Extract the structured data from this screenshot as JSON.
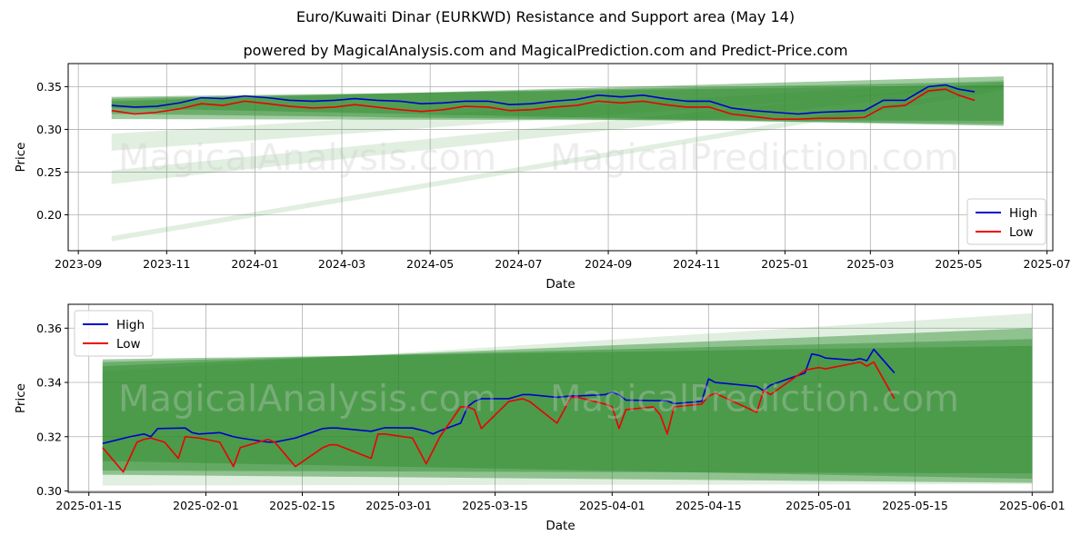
{
  "header": {
    "title": "Euro/Kuwaiti Dinar (EURKWD) Resistance and Support area (May 14)",
    "subtitle": "powered by MagicalAnalysis.com and MagicalPrediction.com and Predict-Price.com"
  },
  "watermarks": [
    "MagicalAnalysis.com",
    "MagicalPrediction.com"
  ],
  "colors": {
    "high": "#0000cc",
    "low": "#ee0000",
    "band": "#2e8b2e",
    "grid": "#b0b0b0"
  },
  "chart_data": [
    {
      "type": "line",
      "xlabel": "Date",
      "ylabel": "Price",
      "x_ticks": [
        "2023-09",
        "2023-11",
        "2024-01",
        "2024-03",
        "2024-05",
        "2024-07",
        "2024-09",
        "2024-11",
        "2025-01",
        "2025-03",
        "2025-05",
        "2025-07"
      ],
      "y_ticks": [
        "0.20",
        "0.25",
        "0.30",
        "0.35"
      ],
      "xlim": [
        "2023-08-25",
        "2025-07-05"
      ],
      "ylim": [
        0.158,
        0.377
      ],
      "legend": {
        "position": "bottom-right",
        "entries": [
          "High",
          "Low"
        ]
      },
      "bands": [
        {
          "x": [
            "2023-09-24",
            "2025-06-01"
          ],
          "top": [
            0.338,
            0.352
          ],
          "bottom": [
            0.318,
            0.306
          ]
        },
        {
          "x": [
            "2023-09-24",
            "2025-06-01"
          ],
          "top": [
            0.336,
            0.356
          ],
          "bottom": [
            0.312,
            0.31
          ]
        },
        {
          "x": [
            "2023-09-24",
            "2025-06-01"
          ],
          "top": [
            0.333,
            0.362
          ],
          "bottom": [
            0.325,
            0.304
          ]
        },
        {
          "x": [
            "2023-09-24",
            "2025-06-01"
          ],
          "top": [
            0.295,
            0.358
          ],
          "bottom": [
            0.275,
            0.35
          ]
        },
        {
          "x": [
            "2023-09-24",
            "2025-06-01"
          ],
          "top": [
            0.252,
            0.356
          ],
          "bottom": [
            0.236,
            0.349
          ]
        },
        {
          "x": [
            "2023-09-24",
            "2025-06-01"
          ],
          "top": [
            0.175,
            0.352
          ],
          "bottom": [
            0.169,
            0.346
          ]
        }
      ],
      "series": [
        {
          "name": "High",
          "x": [
            "2023-09-24",
            "2023-10-10",
            "2023-10-25",
            "2023-11-10",
            "2023-11-25",
            "2023-12-10",
            "2023-12-25",
            "2024-01-10",
            "2024-01-25",
            "2024-02-10",
            "2024-02-25",
            "2024-03-10",
            "2024-03-25",
            "2024-04-10",
            "2024-04-25",
            "2024-05-10",
            "2024-05-25",
            "2024-06-10",
            "2024-06-25",
            "2024-07-10",
            "2024-07-25",
            "2024-08-10",
            "2024-08-25",
            "2024-09-10",
            "2024-09-25",
            "2024-10-10",
            "2024-10-25",
            "2024-11-10",
            "2024-11-25",
            "2024-12-10",
            "2024-12-25",
            "2025-01-10",
            "2025-01-25",
            "2025-02-10",
            "2025-02-25",
            "2025-03-10",
            "2025-03-25",
            "2025-04-10",
            "2025-04-22",
            "2025-05-01",
            "2025-05-12"
          ],
          "values": [
            0.328,
            0.326,
            0.327,
            0.331,
            0.337,
            0.336,
            0.339,
            0.337,
            0.334,
            0.333,
            0.334,
            0.336,
            0.334,
            0.333,
            0.33,
            0.331,
            0.333,
            0.333,
            0.329,
            0.33,
            0.333,
            0.335,
            0.34,
            0.338,
            0.34,
            0.336,
            0.333,
            0.333,
            0.325,
            0.322,
            0.32,
            0.318,
            0.32,
            0.321,
            0.322,
            0.334,
            0.334,
            0.35,
            0.352,
            0.347,
            0.344
          ]
        },
        {
          "name": "Low",
          "x": [
            "2023-09-24",
            "2023-10-10",
            "2023-10-25",
            "2023-11-10",
            "2023-11-25",
            "2023-12-10",
            "2023-12-25",
            "2024-01-10",
            "2024-01-25",
            "2024-02-10",
            "2024-02-25",
            "2024-03-10",
            "2024-03-25",
            "2024-04-10",
            "2024-04-25",
            "2024-05-10",
            "2024-05-25",
            "2024-06-10",
            "2024-06-25",
            "2024-07-10",
            "2024-07-25",
            "2024-08-10",
            "2024-08-25",
            "2024-09-10",
            "2024-09-25",
            "2024-10-10",
            "2024-10-25",
            "2024-11-10",
            "2024-11-25",
            "2024-12-10",
            "2024-12-25",
            "2025-01-10",
            "2025-01-25",
            "2025-02-10",
            "2025-02-25",
            "2025-03-10",
            "2025-03-25",
            "2025-04-10",
            "2025-04-22",
            "2025-05-01",
            "2025-05-12"
          ],
          "values": [
            0.322,
            0.318,
            0.32,
            0.324,
            0.33,
            0.328,
            0.333,
            0.33,
            0.327,
            0.325,
            0.326,
            0.329,
            0.326,
            0.323,
            0.321,
            0.323,
            0.327,
            0.326,
            0.322,
            0.323,
            0.326,
            0.328,
            0.333,
            0.331,
            0.333,
            0.329,
            0.326,
            0.326,
            0.318,
            0.315,
            0.312,
            0.312,
            0.313,
            0.313,
            0.314,
            0.326,
            0.328,
            0.345,
            0.347,
            0.34,
            0.334
          ]
        }
      ]
    },
    {
      "type": "line",
      "xlabel": "Date",
      "ylabel": "Price",
      "x_ticks": [
        "2025-01-15",
        "2025-02-01",
        "2025-02-15",
        "2025-03-01",
        "2025-03-15",
        "2025-04-01",
        "2025-04-15",
        "2025-05-01",
        "2025-05-15",
        "2025-06-01"
      ],
      "y_ticks": [
        "0.30",
        "0.32",
        "0.34",
        "0.36"
      ],
      "xlim": [
        "2025-01-12",
        "2025-06-04"
      ],
      "ylim": [
        0.2995,
        0.3688
      ],
      "legend": {
        "position": "top-left",
        "entries": [
          "High",
          "Low"
        ]
      },
      "bands": [
        {
          "x": [
            "2025-01-17",
            "2025-06-01"
          ],
          "top": [
            0.3485,
            0.3535
          ],
          "bottom": [
            0.3075,
            0.3065
          ]
        },
        {
          "x": [
            "2025-01-17",
            "2025-06-01"
          ],
          "top": [
            0.3475,
            0.356
          ],
          "bottom": [
            0.311,
            0.3045
          ]
        },
        {
          "x": [
            "2025-01-17",
            "2025-06-01"
          ],
          "top": [
            0.346,
            0.36
          ],
          "bottom": [
            0.306,
            0.303
          ]
        },
        {
          "x": [
            "2025-01-17",
            "2025-06-01"
          ],
          "top": [
            0.344,
            0.3655
          ],
          "bottom": [
            0.302,
            0.3025
          ]
        }
      ],
      "series": [
        {
          "name": "High",
          "x": [
            "2025-01-17",
            "2025-01-21",
            "2025-01-23",
            "2025-01-24",
            "2025-01-25",
            "2025-01-29",
            "2025-01-30",
            "2025-01-31",
            "2025-02-03",
            "2025-02-05",
            "2025-02-06",
            "2025-02-10",
            "2025-02-11",
            "2025-02-14",
            "2025-02-18",
            "2025-02-19",
            "2025-02-20",
            "2025-02-25",
            "2025-02-27",
            "2025-02-28",
            "2025-03-03",
            "2025-03-05",
            "2025-03-06",
            "2025-03-07",
            "2025-03-10",
            "2025-03-11",
            "2025-03-12",
            "2025-03-13",
            "2025-03-17",
            "2025-03-19",
            "2025-03-20",
            "2025-03-24",
            "2025-03-26",
            "2025-03-27",
            "2025-03-31",
            "2025-04-01",
            "2025-04-02",
            "2025-04-03",
            "2025-04-07",
            "2025-04-08",
            "2025-04-09",
            "2025-04-10",
            "2025-04-14",
            "2025-04-15",
            "2025-04-16",
            "2025-04-22",
            "2025-04-23",
            "2025-04-24",
            "2025-04-29",
            "2025-04-30",
            "2025-05-01",
            "2025-05-02",
            "2025-05-06",
            "2025-05-07",
            "2025-05-08",
            "2025-05-09",
            "2025-05-12"
          ],
          "values": [
            0.3175,
            0.32,
            0.321,
            0.32,
            0.323,
            0.3232,
            0.3215,
            0.321,
            0.3215,
            0.32,
            0.3195,
            0.318,
            0.318,
            0.3195,
            0.323,
            0.3232,
            0.3232,
            0.322,
            0.3233,
            0.3233,
            0.3232,
            0.322,
            0.321,
            0.3222,
            0.325,
            0.331,
            0.333,
            0.334,
            0.334,
            0.3355,
            0.3355,
            0.3345,
            0.335,
            0.335,
            0.3355,
            0.3365,
            0.3355,
            0.3335,
            0.3333,
            0.3333,
            0.3332,
            0.3322,
            0.333,
            0.3413,
            0.34,
            0.3385,
            0.337,
            0.339,
            0.3435,
            0.3505,
            0.35,
            0.349,
            0.3482,
            0.3488,
            0.348,
            0.3522,
            0.3435
          ]
        },
        {
          "name": "Low",
          "x": [
            "2025-01-17",
            "2025-01-20",
            "2025-01-22",
            "2025-01-23",
            "2025-01-24",
            "2025-01-26",
            "2025-01-28",
            "2025-01-29",
            "2025-01-31",
            "2025-02-03",
            "2025-02-05",
            "2025-02-06",
            "2025-02-10",
            "2025-02-11",
            "2025-02-14",
            "2025-02-18",
            "2025-02-19",
            "2025-02-20",
            "2025-02-25",
            "2025-02-26",
            "2025-02-27",
            "2025-03-03",
            "2025-03-05",
            "2025-03-07",
            "2025-03-10",
            "2025-03-11",
            "2025-03-12",
            "2025-03-13",
            "2025-03-17",
            "2025-03-19",
            "2025-03-20",
            "2025-03-24",
            "2025-03-26",
            "2025-03-27",
            "2025-03-31",
            "2025-04-01",
            "2025-04-02",
            "2025-04-03",
            "2025-04-07",
            "2025-04-08",
            "2025-04-09",
            "2025-04-10",
            "2025-04-14",
            "2025-04-15",
            "2025-04-16",
            "2025-04-22",
            "2025-04-23",
            "2025-04-24",
            "2025-04-29",
            "2025-04-30",
            "2025-05-01",
            "2025-05-02",
            "2025-05-06",
            "2025-05-07",
            "2025-05-08",
            "2025-05-09",
            "2025-05-12"
          ],
          "values": [
            0.316,
            0.307,
            0.318,
            0.319,
            0.3195,
            0.318,
            0.312,
            0.32,
            0.3195,
            0.318,
            0.309,
            0.316,
            0.319,
            0.318,
            0.309,
            0.316,
            0.317,
            0.317,
            0.312,
            0.321,
            0.321,
            0.3195,
            0.31,
            0.32,
            0.331,
            0.331,
            0.33,
            0.323,
            0.333,
            0.334,
            0.333,
            0.325,
            0.3345,
            0.3345,
            0.332,
            0.331,
            0.323,
            0.33,
            0.331,
            0.328,
            0.321,
            0.331,
            0.332,
            0.335,
            0.336,
            0.329,
            0.337,
            0.3355,
            0.3445,
            0.345,
            0.3455,
            0.345,
            0.347,
            0.3475,
            0.346,
            0.3475,
            0.334
          ]
        }
      ]
    }
  ]
}
